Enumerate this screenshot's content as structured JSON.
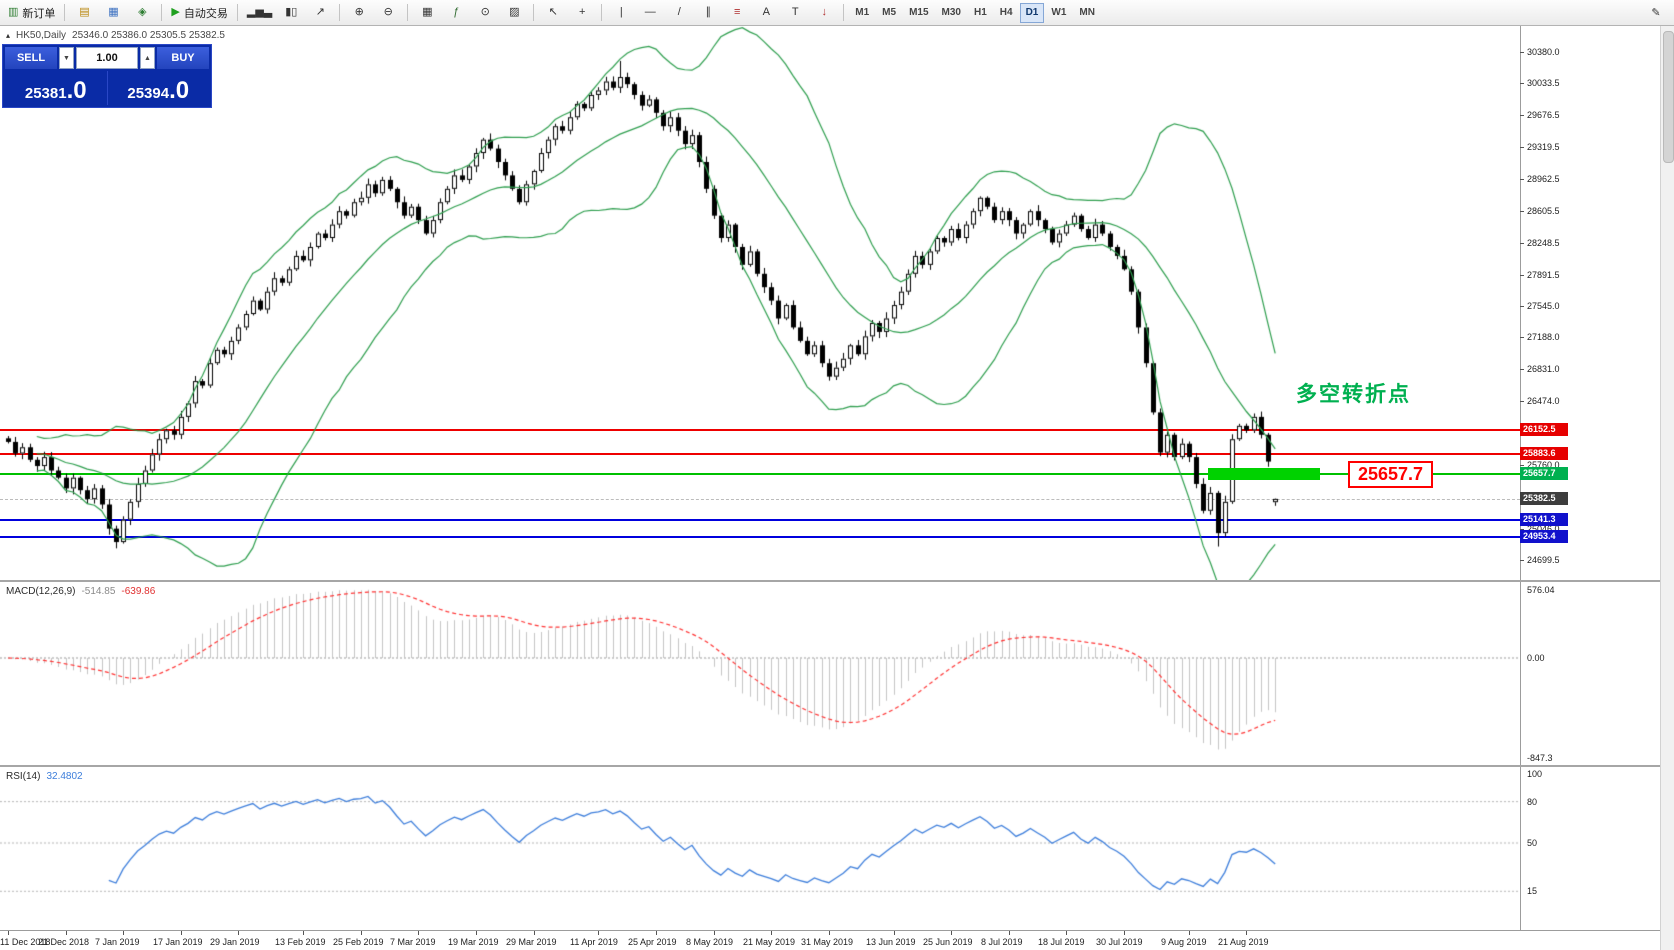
{
  "toolbar": {
    "groups": [
      {
        "items": [
          {
            "name": "new-order-button",
            "glyph": "▥",
            "glyph_color": "#2e7d32",
            "label": "新订单"
          }
        ]
      },
      {
        "items": [
          {
            "name": "marketwatch-icon",
            "glyph": "▤",
            "glyph_color": "#b8860b"
          },
          {
            "name": "data-window-icon",
            "glyph": "▦",
            "glyph_color": "#3a6fc0"
          },
          {
            "name": "navigator-icon",
            "glyph": "◈",
            "glyph_color": "#2e7d32"
          }
        ]
      },
      {
        "items": [
          {
            "name": "autotrading-button",
            "glyph": "▶",
            "glyph_color": "#1fa01f",
            "label": "自动交易"
          }
        ]
      },
      {
        "items": [
          {
            "name": "bar-chart-icon",
            "glyph": "▂▅▃"
          },
          {
            "name": "candlestick-icon",
            "glyph": "▮▯"
          },
          {
            "name": "line-chart-icon",
            "glyph": "↗"
          }
        ]
      },
      {
        "items": [
          {
            "name": "zoom-in-icon",
            "glyph": "⊕"
          },
          {
            "name": "zoom-out-icon",
            "glyph": "⊖"
          }
        ]
      },
      {
        "items": [
          {
            "name": "tile-windows-icon",
            "glyph": "▦"
          },
          {
            "name": "indicators-icon",
            "glyph": "ƒ",
            "glyph_color": "#356e35"
          },
          {
            "name": "periods-icon",
            "glyph": "⊙"
          },
          {
            "name": "templates-icon",
            "glyph": "▨"
          }
        ]
      },
      {
        "items": [
          {
            "name": "cursor-icon",
            "glyph": "↖"
          },
          {
            "name": "crosshair-icon",
            "glyph": "+"
          }
        ]
      },
      {
        "items": [
          {
            "name": "vertical-line-icon",
            "glyph": "|"
          },
          {
            "name": "horizontal-line-icon",
            "glyph": "—"
          },
          {
            "name": "trendline-icon",
            "glyph": "/"
          },
          {
            "name": "channel-icon",
            "glyph": "∥"
          },
          {
            "name": "fibonacci-icon",
            "glyph": "≡",
            "glyph_color": "#b03030"
          },
          {
            "name": "text-icon",
            "glyph": "A"
          },
          {
            "name": "label-icon",
            "glyph": "T"
          },
          {
            "name": "arrows-icon",
            "glyph": "↓",
            "glyph_color": "#b03030"
          }
        ]
      }
    ],
    "timeframes": [
      {
        "label": "M1"
      },
      {
        "label": "M5"
      },
      {
        "label": "M15"
      },
      {
        "label": "M30"
      },
      {
        "label": "H1"
      },
      {
        "label": "H4"
      },
      {
        "label": "D1",
        "active": true
      },
      {
        "label": "W1"
      },
      {
        "label": "MN"
      }
    ],
    "edit_glyph": "✎"
  },
  "chart": {
    "symbol_marker": "▴",
    "symbol_text": "HK50,Daily",
    "ohlc_text": "25346.0 25386.0 25305.5 25382.5"
  },
  "trade_panel": {
    "sell_label": "SELL",
    "buy_label": "BUY",
    "volume": "1.00",
    "volume_down_glyph": "▼",
    "volume_up_glyph": "▲",
    "sell_price": "25381",
    "sell_price_frac": ".0",
    "buy_price": "25394",
    "buy_price_frac": ".0"
  },
  "macd_panel": {
    "title": "MACD(12,26,9)",
    "value_main": "-514.85",
    "value_signal": "-639.86",
    "axis": [
      "576.04",
      "0.00",
      "-847.3"
    ]
  },
  "rsi_panel": {
    "title": "RSI(14)",
    "value": "32.4802",
    "axis": [
      "100",
      "80",
      "50",
      "15"
    ]
  },
  "time_axis": {
    "labels": [
      "11 Dec 2018",
      "21 Dec 2018",
      "7 Jan 2019",
      "17 Jan 2019",
      "29 Jan 2019",
      "13 Feb 2019",
      "25 Feb 2019",
      "7 Mar 2019",
      "19 Mar 2019",
      "29 Mar 2019",
      "11 Apr 2019",
      "25 Apr 2019",
      "8 May 2019",
      "21 May 2019",
      "31 May 2019",
      "13 Jun 2019",
      "25 Jun 2019",
      "8 Jul 2019",
      "18 Jul 2019",
      "30 Jul 2019",
      "9 Aug 2019",
      "21 Aug 2019"
    ],
    "indices": [
      0,
      8,
      16,
      24,
      32,
      41,
      49,
      57,
      65,
      73,
      82,
      90,
      98,
      106,
      114,
      123,
      131,
      139,
      147,
      155,
      164,
      172
    ]
  },
  "chart_data": {
    "type": "candlestick",
    "symbol": "HK50",
    "period": "Daily",
    "current_bar": {
      "open": 25346.0,
      "high": 25386.0,
      "low": 25305.5,
      "close": 25382.5
    },
    "ylim": [
      24699.5,
      30380.0
    ],
    "closes": [
      26020,
      25890,
      25960,
      25820,
      25750,
      25850,
      25700,
      25620,
      25500,
      25620,
      25480,
      25380,
      25500,
      25320,
      25050,
      24900,
      25150,
      25350,
      25550,
      25700,
      25880,
      26050,
      26150,
      26100,
      26300,
      26450,
      26700,
      26650,
      26900,
      27050,
      27000,
      27150,
      27300,
      27450,
      27600,
      27500,
      27700,
      27850,
      27800,
      27950,
      28100,
      28050,
      28200,
      28350,
      28300,
      28450,
      28600,
      28550,
      28700,
      28750,
      28900,
      28800,
      28950,
      28850,
      28700,
      28550,
      28650,
      28500,
      28350,
      28500,
      28700,
      28850,
      29000,
      28950,
      29100,
      29250,
      29400,
      29300,
      29150,
      29000,
      28850,
      28700,
      28900,
      29050,
      29250,
      29400,
      29550,
      29500,
      29650,
      29800,
      29750,
      29900,
      29950,
      30050,
      29980,
      30100,
      30020,
      29900,
      29780,
      29850,
      29700,
      29550,
      29650,
      29500,
      29350,
      29450,
      29150,
      28850,
      28550,
      28300,
      28450,
      28200,
      28000,
      28150,
      27900,
      27750,
      27600,
      27400,
      27550,
      27300,
      27150,
      27000,
      27100,
      26900,
      26750,
      26850,
      26950,
      27100,
      27000,
      27200,
      27350,
      27250,
      27400,
      27550,
      27700,
      27900,
      28100,
      28000,
      28150,
      28300,
      28250,
      28400,
      28300,
      28450,
      28600,
      28750,
      28650,
      28500,
      28600,
      28500,
      28350,
      28450,
      28600,
      28500,
      28400,
      28250,
      28350,
      28450,
      28550,
      28400,
      28300,
      28450,
      28350,
      28200,
      28100,
      27950,
      27700,
      27300,
      26900,
      26350,
      25900,
      26100,
      25850,
      26000,
      25850,
      25550,
      25250,
      25450,
      25000,
      25350,
      26050,
      26200,
      26150,
      26300,
      26100,
      25800,
      25382.5
    ],
    "low_overrides": {
      "15": 24830,
      "168": 24850
    },
    "high_overrides": {
      "85": 30280
    },
    "axis_ticks": [
      "30380.0",
      "30033.5",
      "29676.5",
      "29319.5",
      "28962.5",
      "28605.5",
      "28248.5",
      "27891.5",
      "27545.0",
      "27188.0",
      "26831.0",
      "26474.0",
      "26117.0",
      "25760.0",
      "25403.0",
      "25046.0",
      "24699.5"
    ],
    "hlines": [
      {
        "price": 26152.5,
        "color": "#ee0000"
      },
      {
        "price": 25883.6,
        "color": "#ee0000"
      },
      {
        "price": 25657.7,
        "color": "#00c000"
      },
      {
        "price": 25141.3,
        "color": "#0000dd"
      },
      {
        "price": 24953.4,
        "color": "#0000dd"
      }
    ],
    "price_labels": [
      {
        "text": "26152.5",
        "price": 26152.5,
        "bg": "#e60000"
      },
      {
        "text": "25883.6",
        "price": 25883.6,
        "bg": "#e60000"
      },
      {
        "text": "25657.7",
        "price": 25657.7,
        "bg": "#00b050"
      },
      {
        "text": "25382.5",
        "price": 25382.5,
        "bg": "#3d3d3d"
      },
      {
        "text": "25141.3",
        "price": 25141.3,
        "bg": "#1111cc"
      },
      {
        "text": "24953.4",
        "price": 24953.4,
        "bg": "#1111cc"
      }
    ],
    "bid_price": 25382.5,
    "rectangle": {
      "index_from": 167,
      "index_to": 182,
      "price_top": 25725,
      "price_bottom": 25595,
      "color": "#00d200"
    },
    "annotation": {
      "text": "多空转折点",
      "price": 26560,
      "color": "#00b050"
    },
    "callout": {
      "text": "25657.7",
      "price": 25657.7,
      "color": "#ff0000"
    },
    "bollinger": {
      "period": 20,
      "deviation": 2,
      "color": "#2e9e4e"
    },
    "macd": {
      "fast": 12,
      "slow": 26,
      "signal": 9,
      "hist_color": "#c4c4c4",
      "signal_color": "#ff3333",
      "scale_max": 576.04,
      "scale_min": -847.3
    },
    "rsi": {
      "period": 14,
      "color": "#3d7edb",
      "levels": [
        80,
        50,
        15
      ]
    }
  }
}
